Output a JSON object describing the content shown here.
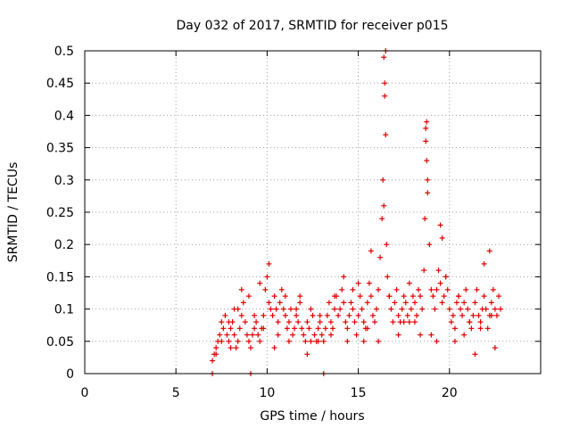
{
  "chart_data": {
    "type": "scatter",
    "title": "Day 032 of 2017, SRMTID for receiver p015",
    "xlabel": "GPS time / hours",
    "ylabel": "SRMTID / TECUs",
    "xlim": [
      0,
      25
    ],
    "ylim": [
      0,
      0.5
    ],
    "x_ticks": [
      0,
      5,
      10,
      15,
      20
    ],
    "x_tick_labels": [
      "0",
      "5",
      "10",
      "15",
      "20"
    ],
    "y_ticks": [
      0,
      0.05,
      0.1,
      0.15,
      0.2,
      0.25,
      0.3,
      0.35,
      0.4,
      0.45,
      0.5
    ],
    "y_tick_labels": [
      "0",
      "0.05",
      "0.1",
      "0.15",
      "0.2",
      "0.25",
      "0.3",
      "0.35",
      "0.4",
      "0.45",
      "0.5"
    ],
    "grid": true,
    "marker": "+",
    "color": "#e00000",
    "series": [
      {
        "name": "SRMTID",
        "x": [
          7.0,
          7.1,
          7.2,
          7.3,
          7.4,
          7.5,
          7.6,
          7.7,
          7.8,
          7.9,
          8.0,
          8.1,
          8.2,
          8.3,
          8.4,
          8.5,
          8.6,
          8.7,
          8.8,
          8.9,
          9.0,
          9.1,
          9.2,
          9.3,
          9.4,
          9.5,
          9.6,
          9.7,
          9.8,
          9.9,
          10.0,
          10.1,
          10.2,
          10.3,
          10.4,
          10.5,
          10.6,
          10.7,
          10.8,
          10.9,
          11.0,
          11.1,
          11.2,
          11.3,
          11.4,
          11.5,
          11.6,
          11.7,
          11.8,
          11.9,
          12.0,
          12.1,
          12.2,
          12.3,
          12.4,
          12.5,
          12.6,
          12.7,
          12.8,
          12.9,
          13.0,
          13.1,
          13.2,
          13.3,
          13.4,
          13.5,
          13.6,
          13.7,
          13.8,
          13.9,
          14.0,
          14.1,
          14.2,
          14.3,
          14.4,
          14.5,
          14.6,
          14.7,
          14.8,
          14.9,
          15.0,
          15.1,
          15.2,
          15.3,
          15.4,
          15.5,
          15.6,
          15.7,
          15.8,
          15.9,
          16.0,
          16.1,
          16.2,
          16.3,
          16.35,
          16.4,
          16.45,
          16.5,
          16.6,
          16.7,
          16.8,
          16.9,
          17.0,
          17.1,
          17.2,
          17.3,
          17.4,
          17.5,
          17.6,
          17.7,
          17.8,
          17.9,
          18.0,
          18.1,
          18.2,
          18.3,
          18.4,
          18.5,
          18.6,
          18.65,
          18.7,
          18.75,
          18.8,
          18.9,
          19.0,
          19.1,
          19.2,
          19.3,
          19.4,
          19.5,
          19.6,
          19.7,
          19.8,
          19.9,
          20.0,
          20.1,
          20.2,
          20.3,
          20.4,
          20.5,
          20.6,
          20.7,
          20.8,
          20.9,
          21.0,
          21.1,
          21.2,
          21.3,
          21.4,
          21.5,
          21.6,
          21.7,
          21.8,
          21.9,
          22.0,
          22.1,
          22.2,
          22.3,
          22.4,
          22.5,
          22.6,
          22.7,
          22.8,
          7.0,
          9.1,
          13.1,
          7.2,
          7.5,
          7.9,
          8.2,
          8.6,
          9.3,
          9.8,
          10.1,
          10.6,
          11.2,
          11.8,
          12.4,
          12.9,
          13.5,
          14.2,
          14.7,
          15.3,
          15.7,
          16.4,
          16.45,
          16.5,
          16.55,
          17.2,
          17.8,
          18.4,
          18.7,
          18.75,
          18.8,
          19.3,
          19.5,
          19.6,
          20.3,
          20.8,
          21.4,
          21.9,
          22.2,
          22.5,
          8.0,
          8.4,
          9.0,
          9.6,
          10.4,
          11.0,
          11.6,
          12.2,
          12.8,
          13.7,
          14.4,
          15.0,
          15.5,
          16.1,
          16.7,
          17.5,
          18.1,
          19.0,
          19.8,
          20.5,
          21.1,
          21.7,
          22.3
        ],
        "y": [
          0.02,
          0.03,
          0.04,
          0.05,
          0.06,
          0.08,
          0.07,
          0.09,
          0.06,
          0.05,
          0.07,
          0.08,
          0.06,
          0.04,
          0.05,
          0.07,
          0.09,
          0.11,
          0.08,
          0.06,
          0.05,
          0.04,
          0.06,
          0.07,
          0.08,
          0.06,
          0.05,
          0.07,
          0.09,
          0.13,
          0.15,
          0.11,
          0.1,
          0.09,
          0.12,
          0.1,
          0.08,
          0.11,
          0.13,
          0.1,
          0.09,
          0.07,
          0.08,
          0.1,
          0.06,
          0.07,
          0.09,
          0.08,
          0.11,
          0.07,
          0.06,
          0.05,
          0.08,
          0.07,
          0.1,
          0.09,
          0.06,
          0.05,
          0.07,
          0.08,
          0.06,
          0.05,
          0.07,
          0.09,
          0.11,
          0.08,
          0.07,
          0.1,
          0.12,
          0.09,
          0.1,
          0.13,
          0.11,
          0.08,
          0.07,
          0.09,
          0.11,
          0.1,
          0.08,
          0.06,
          0.09,
          0.12,
          0.1,
          0.08,
          0.07,
          0.11,
          0.14,
          0.12,
          0.09,
          0.08,
          0.1,
          0.13,
          0.18,
          0.24,
          0.3,
          0.49,
          0.45,
          0.37,
          0.15,
          0.12,
          0.1,
          0.08,
          0.11,
          0.13,
          0.09,
          0.08,
          0.1,
          0.12,
          0.11,
          0.09,
          0.08,
          0.1,
          0.12,
          0.11,
          0.09,
          0.13,
          0.12,
          0.1,
          0.16,
          0.24,
          0.38,
          0.33,
          0.28,
          0.2,
          0.13,
          0.12,
          0.1,
          0.13,
          0.16,
          0.14,
          0.11,
          0.12,
          0.15,
          0.13,
          0.1,
          0.08,
          0.09,
          0.07,
          0.11,
          0.12,
          0.1,
          0.09,
          0.11,
          0.13,
          0.1,
          0.08,
          0.07,
          0.09,
          0.11,
          0.13,
          0.09,
          0.08,
          0.1,
          0.12,
          0.1,
          0.07,
          0.09,
          0.11,
          0.13,
          0.1,
          0.09,
          0.12,
          0.1,
          0.0,
          0.0,
          0.0,
          0.03,
          0.05,
          0.08,
          0.1,
          0.13,
          0.09,
          0.07,
          0.17,
          0.06,
          0.05,
          0.12,
          0.05,
          0.09,
          0.06,
          0.15,
          0.13,
          0.05,
          0.19,
          0.26,
          0.43,
          0.5,
          0.2,
          0.06,
          0.14,
          0.06,
          0.36,
          0.39,
          0.3,
          0.05,
          0.23,
          0.21,
          0.05,
          0.06,
          0.03,
          0.17,
          0.19,
          0.04,
          0.04,
          0.1,
          0.12,
          0.14,
          0.04,
          0.12,
          0.1,
          0.03,
          0.05,
          0.12,
          0.05,
          0.14,
          0.07,
          0.05,
          0.12,
          0.08,
          0.08,
          0.06,
          0.15,
          0.12,
          0.08,
          0.07,
          0.09
        ]
      }
    ]
  }
}
